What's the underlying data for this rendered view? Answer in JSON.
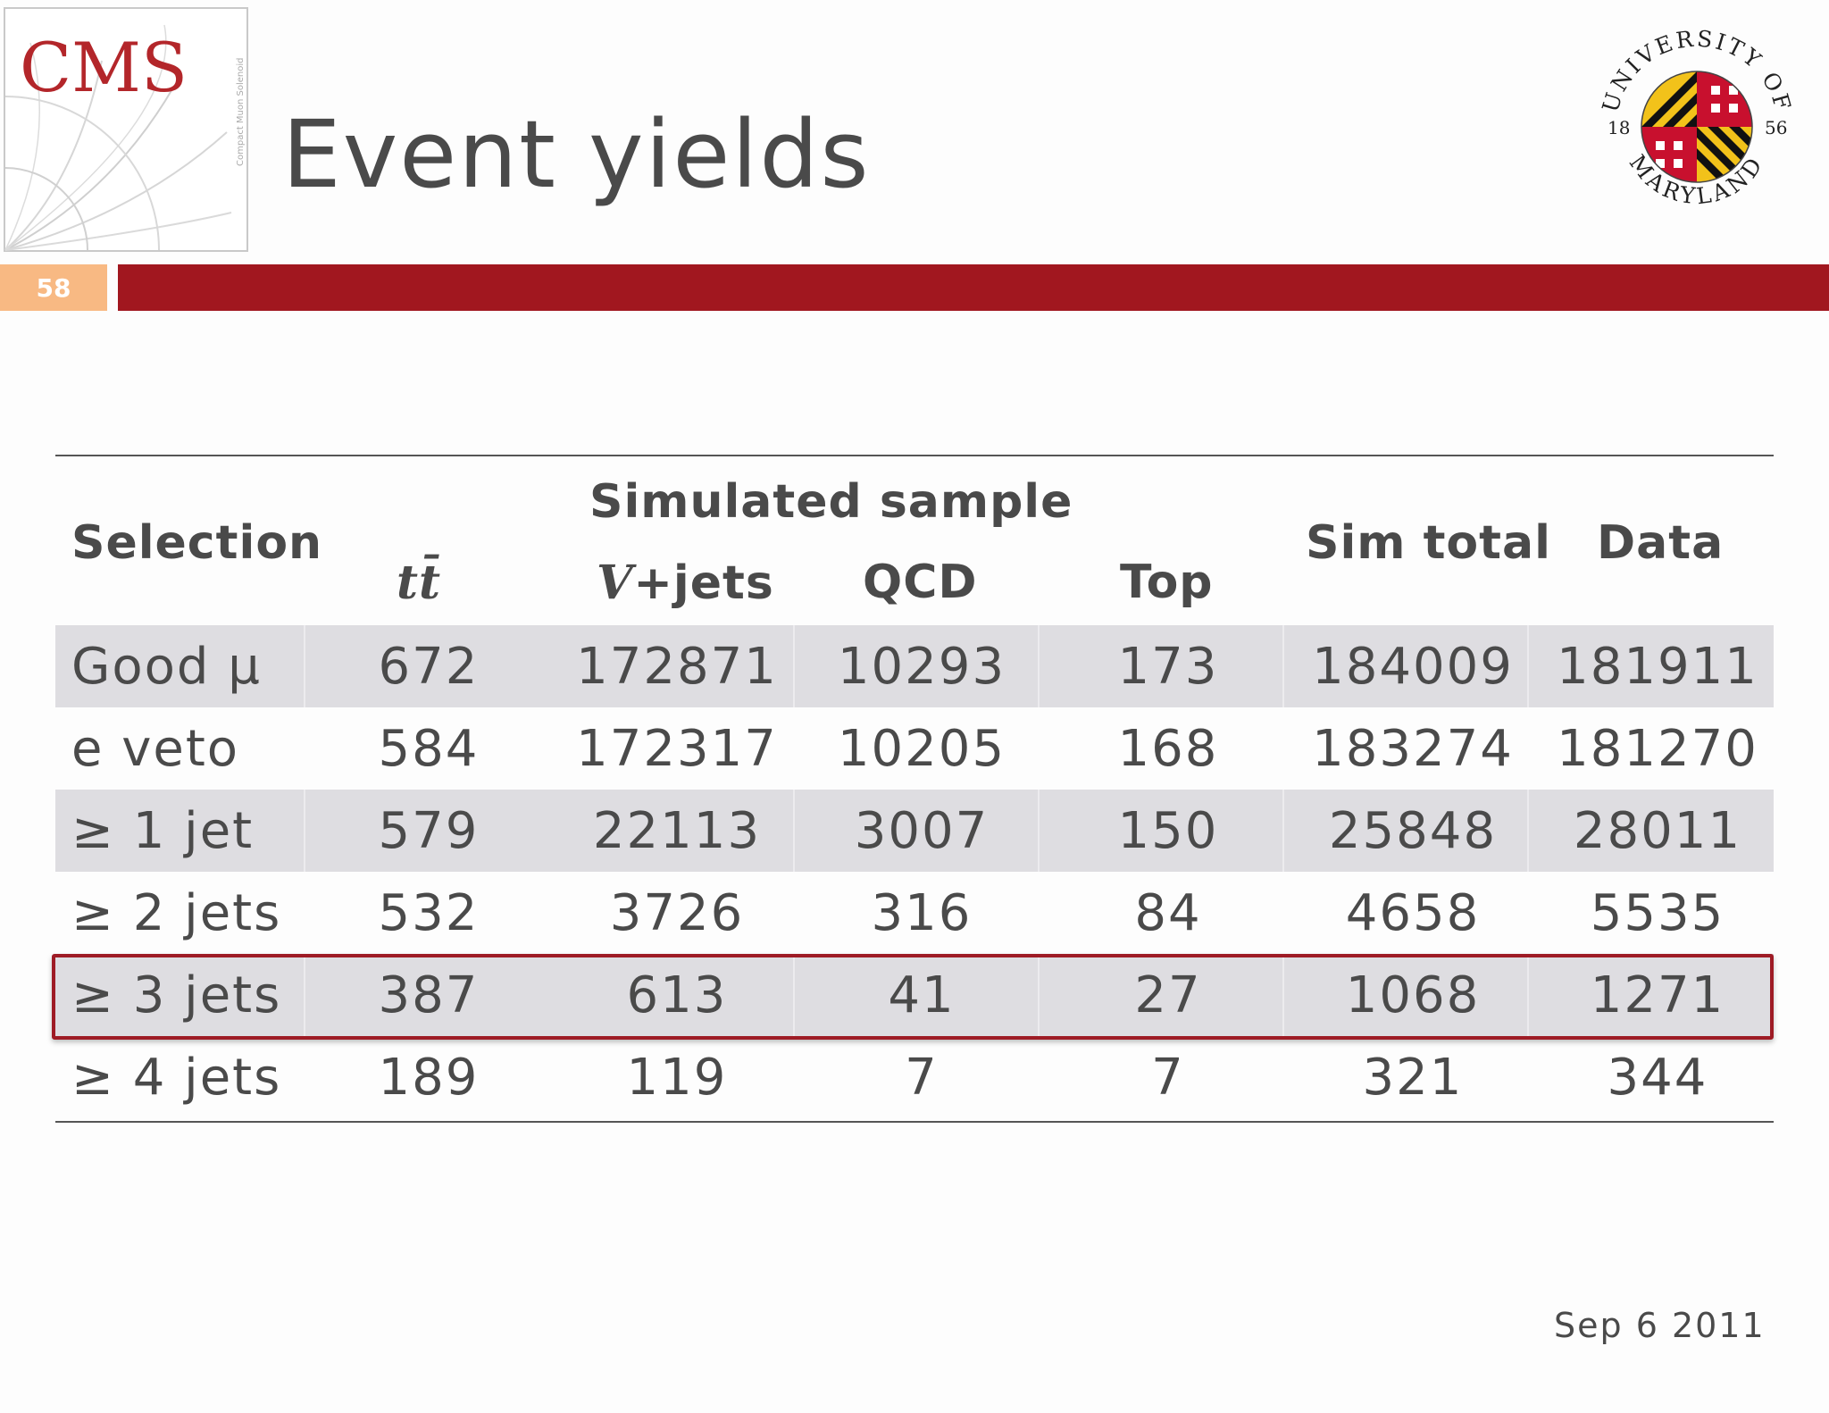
{
  "header": {
    "title": "Event yields",
    "slide_number": "58",
    "cms_logo_text": "CMS",
    "cms_logo_subtext": "Compact Muon Solenoid",
    "umd_seal_text_top": "UNIVERSITY OF",
    "umd_seal_text_bottom": "MARYLAND",
    "umd_seal_year_left": "18",
    "umd_seal_year_right": "56"
  },
  "table": {
    "group_header": "Simulated sample",
    "columns": {
      "selection": "Selection",
      "tt": "tt̄",
      "vjets": "V+jets",
      "qcd": "QCD",
      "top": "Top",
      "sim_total": "Sim total",
      "data": "Data"
    },
    "rows": [
      {
        "selection": "Good μ",
        "tt": "672",
        "vjets": "172871",
        "qcd": "10293",
        "top": "173",
        "sim_total": "184009",
        "data": "181911"
      },
      {
        "selection": "e veto",
        "tt": "584",
        "vjets": "172317",
        "qcd": "10205",
        "top": "168",
        "sim_total": "183274",
        "data": "181270"
      },
      {
        "selection": "≥ 1 jet",
        "tt": "579",
        "vjets": "22113",
        "qcd": "3007",
        "top": "150",
        "sim_total": "25848",
        "data": "28011"
      },
      {
        "selection": "≥ 2 jets",
        "tt": "532",
        "vjets": "3726",
        "qcd": "316",
        "top": "84",
        "sim_total": "4658",
        "data": "5535"
      },
      {
        "selection": "≥ 3 jets",
        "tt": "387",
        "vjets": "613",
        "qcd": "41",
        "top": "27",
        "sim_total": "1068",
        "data": "1271"
      },
      {
        "selection": "≥ 4 jets",
        "tt": "189",
        "vjets": "119",
        "qcd": "7",
        "top": "7",
        "sim_total": "321",
        "data": "344"
      }
    ]
  },
  "footer": {
    "date": "Sep 6 2011"
  },
  "colors": {
    "accent_red": "#a1171f",
    "slide_number_bg": "#f8b983",
    "row_shade": "#dedde1",
    "highlight_border": "#9e1b25"
  }
}
